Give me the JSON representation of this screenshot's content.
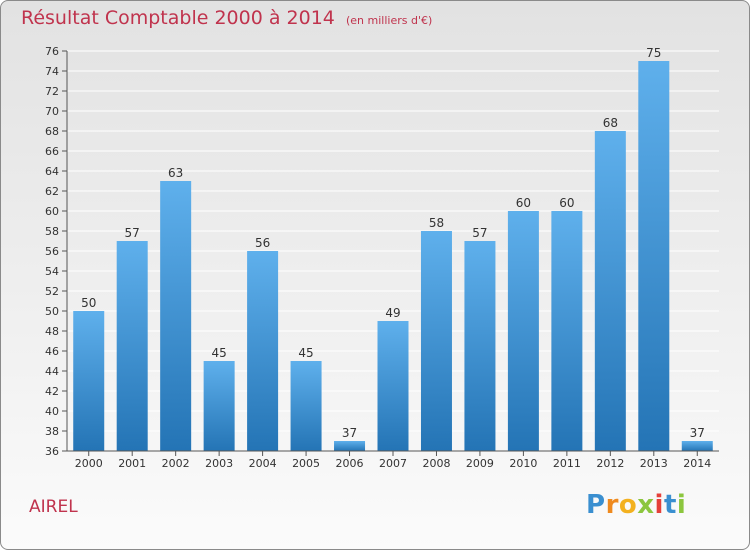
{
  "title": "Résultat Comptable 2000 à 2014",
  "subtitle": "(en milliers d'€)",
  "commune": "AIREL",
  "logo": {
    "letters": [
      "P",
      "r",
      "o",
      "x",
      "i",
      "t",
      "i"
    ]
  },
  "colors": {
    "title": "#c0334d",
    "bar_top": "#5fb0ec",
    "bar_bottom": "#2474b5",
    "logo_letters": [
      "#3a8fd0",
      "#ef8a1e",
      "#f3b11f",
      "#8cc63e",
      "#e5403a",
      "#3a8fd0",
      "#8cc63e"
    ]
  },
  "chart_data": {
    "type": "bar",
    "title": "Résultat Comptable 2000 à 2014",
    "ylabel": "en milliers d'€",
    "xlabel": "",
    "categories": [
      "2000",
      "2001",
      "2002",
      "2003",
      "2004",
      "2005",
      "2006",
      "2007",
      "2008",
      "2009",
      "2010",
      "2011",
      "2012",
      "2013",
      "2014"
    ],
    "values": [
      50,
      57,
      63,
      45,
      56,
      45,
      37,
      49,
      58,
      57,
      60,
      60,
      68,
      75,
      37
    ],
    "ylim": [
      36,
      76
    ],
    "yticks": [
      36,
      38,
      40,
      42,
      44,
      46,
      48,
      50,
      52,
      54,
      56,
      58,
      60,
      62,
      64,
      66,
      68,
      70,
      72,
      74,
      76
    ],
    "grid": true
  }
}
